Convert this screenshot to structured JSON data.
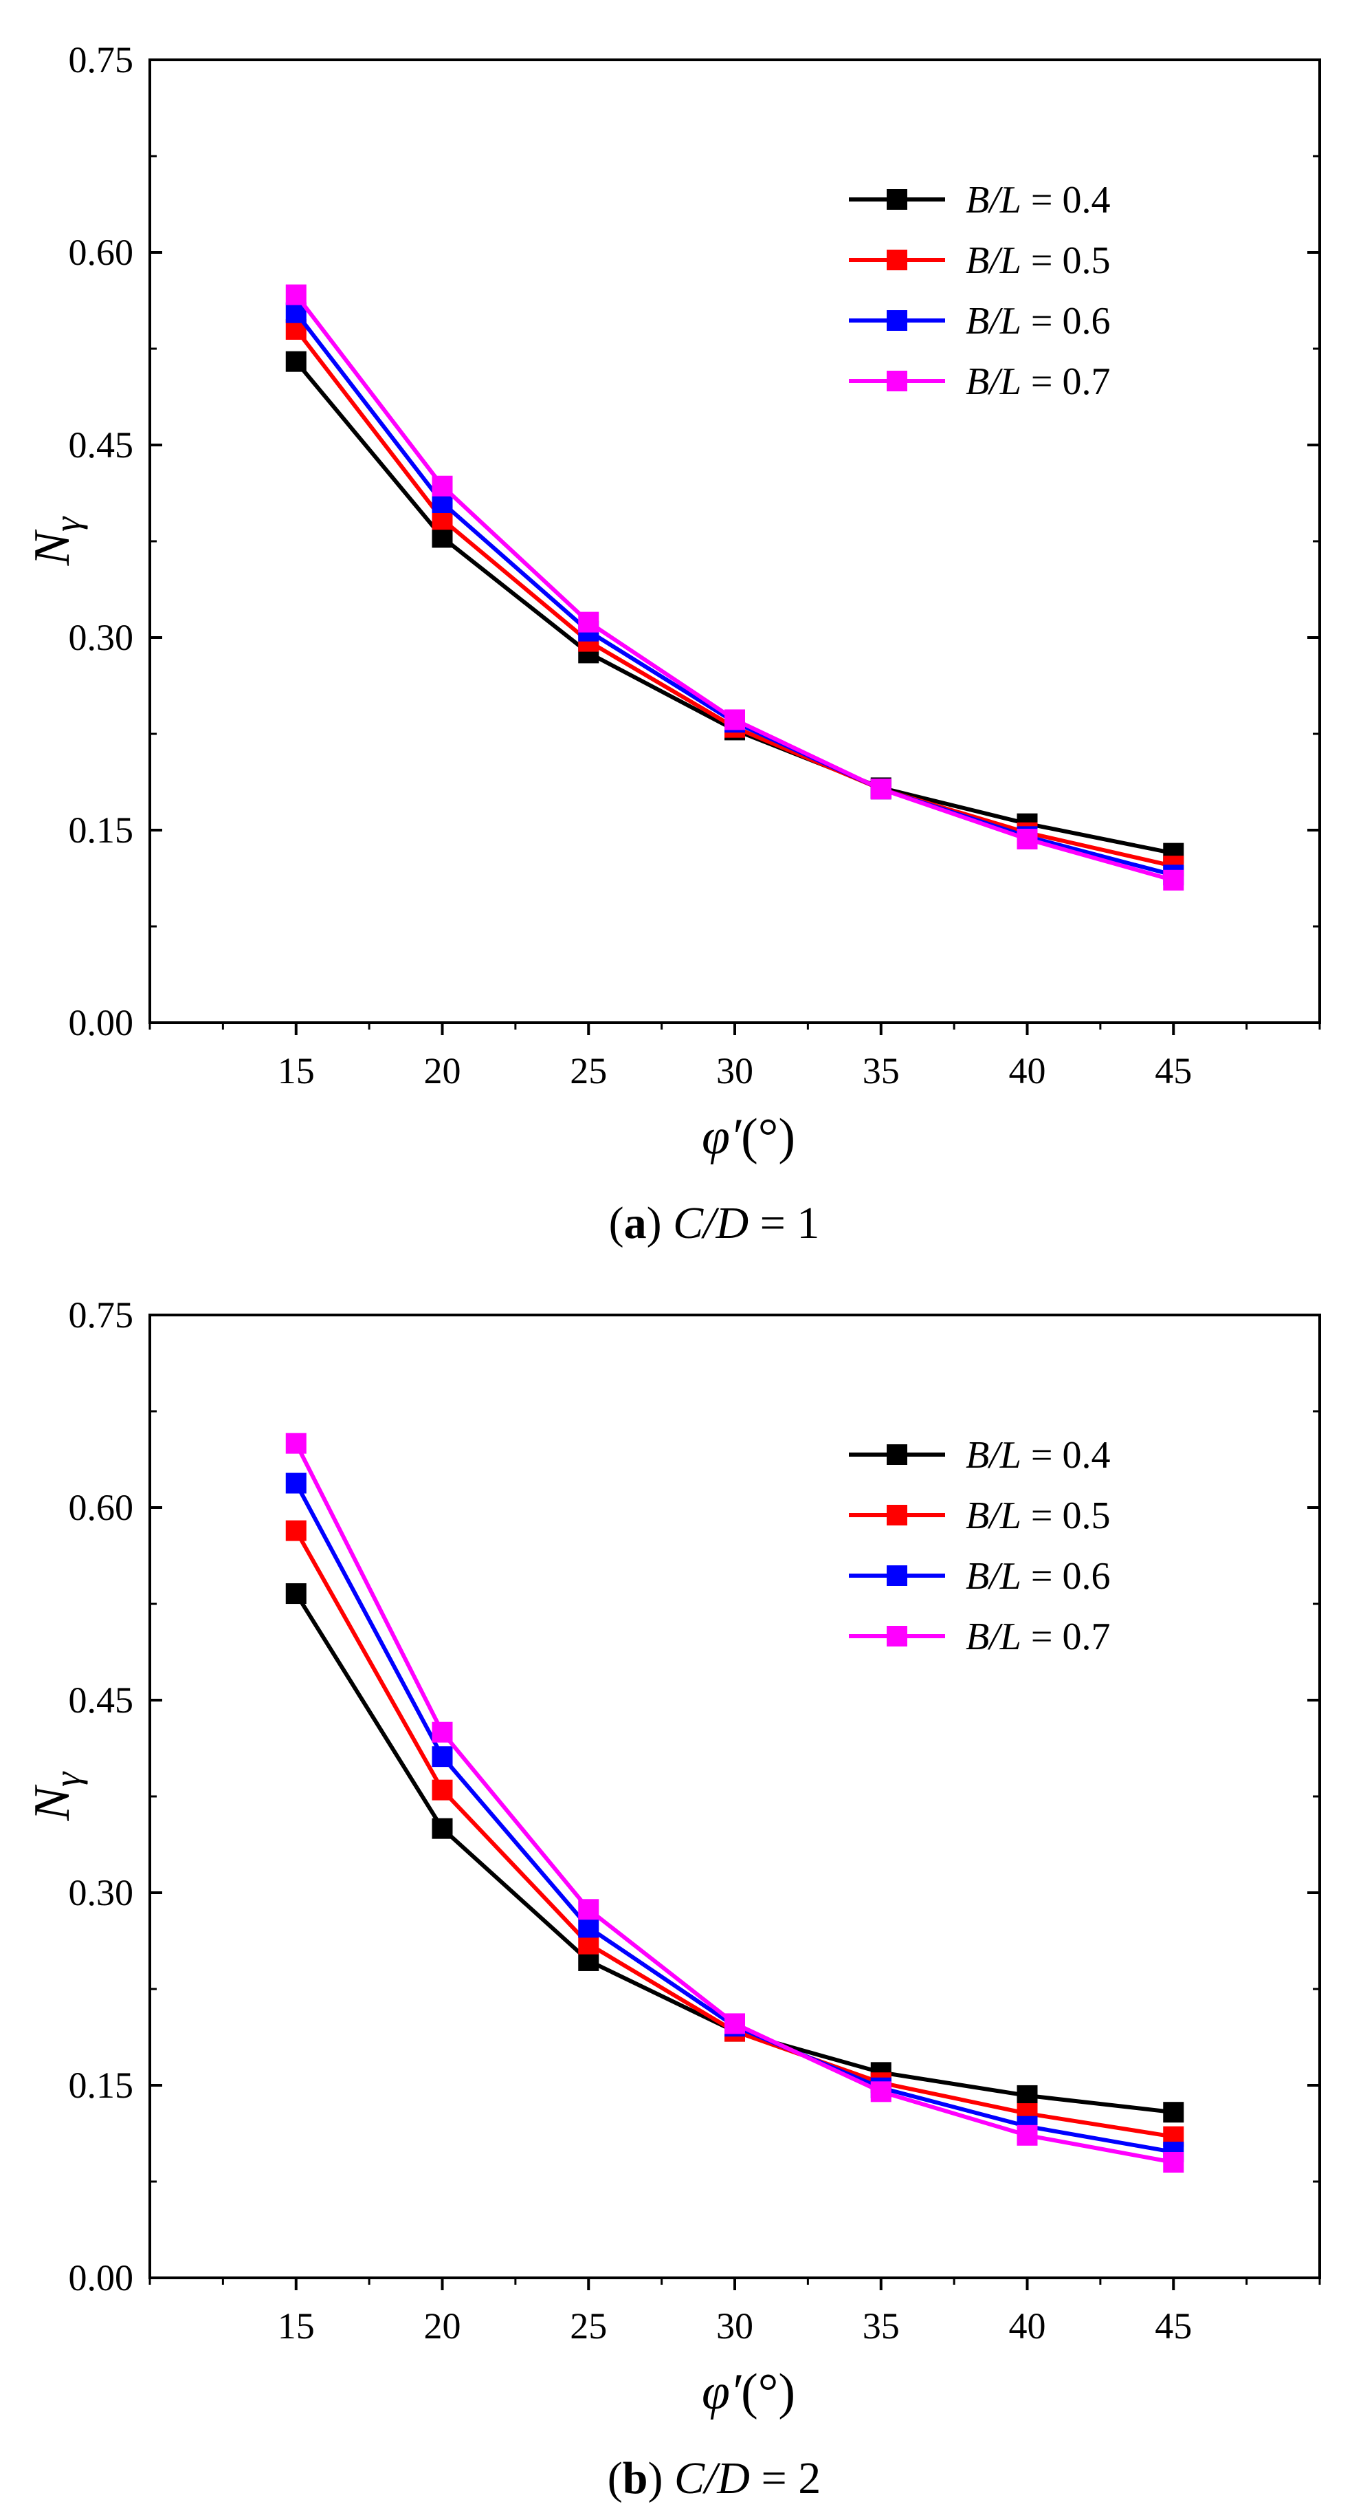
{
  "chart_data": [
    {
      "type": "line",
      "caption_letter": "a",
      "caption_var": "C/D",
      "caption_eq": " = 1",
      "xlabel_symbol": "φ′",
      "xlabel_unit": "(°)",
      "ylabel_main": "N",
      "ylabel_sub": "γ",
      "legend_position": "top-right",
      "x": [
        15,
        20,
        25,
        30,
        35,
        40,
        45
      ],
      "x_ticks": [
        "15",
        "20",
        "25",
        "30",
        "35",
        "40",
        "45"
      ],
      "xlim": [
        10,
        50
      ],
      "ylim": [
        0,
        0.75
      ],
      "y_ticks": [
        "0.00",
        "0.15",
        "0.30",
        "0.45",
        "0.60",
        "0.75"
      ],
      "series": [
        {
          "name_var": "B/L",
          "name_eq": " = 0.4",
          "color": "#000000",
          "values": [
            0.515,
            0.378,
            0.288,
            0.228,
            0.183,
            0.155,
            0.132
          ]
        },
        {
          "name_var": "B/L",
          "name_eq": " = 0.5",
          "color": "#ff0000",
          "values": [
            0.54,
            0.392,
            0.297,
            0.23,
            0.182,
            0.148,
            0.122
          ]
        },
        {
          "name_var": "B/L",
          "name_eq": " = 0.6",
          "color": "#0000ff",
          "values": [
            0.553,
            0.405,
            0.305,
            0.234,
            0.182,
            0.145,
            0.115
          ]
        },
        {
          "name_var": "B/L",
          "name_eq": " = 0.7",
          "color": "#ff00ff",
          "values": [
            0.567,
            0.418,
            0.312,
            0.236,
            0.182,
            0.143,
            0.111
          ]
        }
      ]
    },
    {
      "type": "line",
      "caption_letter": "b",
      "caption_var": "C/D",
      "caption_eq": " = 2",
      "xlabel_symbol": "φ′",
      "xlabel_unit": "(°)",
      "ylabel_main": "N",
      "ylabel_sub": "γ",
      "legend_position": "top-right",
      "x": [
        15,
        20,
        25,
        30,
        35,
        40,
        45
      ],
      "x_ticks": [
        "15",
        "20",
        "25",
        "30",
        "35",
        "40",
        "45"
      ],
      "xlim": [
        10,
        50
      ],
      "ylim": [
        0,
        0.75
      ],
      "y_ticks": [
        "0.00",
        "0.15",
        "0.30",
        "0.45",
        "0.60",
        "0.75"
      ],
      "series": [
        {
          "name_var": "B/L",
          "name_eq": " = 0.4",
          "color": "#000000",
          "values": [
            0.533,
            0.35,
            0.247,
            0.192,
            0.16,
            0.142,
            0.129
          ]
        },
        {
          "name_var": "B/L",
          "name_eq": " = 0.5",
          "color": "#ff0000",
          "values": [
            0.582,
            0.38,
            0.26,
            0.192,
            0.152,
            0.128,
            0.11
          ]
        },
        {
          "name_var": "B/L",
          "name_eq": " = 0.6",
          "color": "#0000ff",
          "values": [
            0.619,
            0.406,
            0.273,
            0.196,
            0.148,
            0.118,
            0.098
          ]
        },
        {
          "name_var": "B/L",
          "name_eq": " = 0.7",
          "color": "#ff00ff",
          "values": [
            0.65,
            0.425,
            0.287,
            0.198,
            0.145,
            0.111,
            0.09
          ]
        }
      ]
    }
  ]
}
